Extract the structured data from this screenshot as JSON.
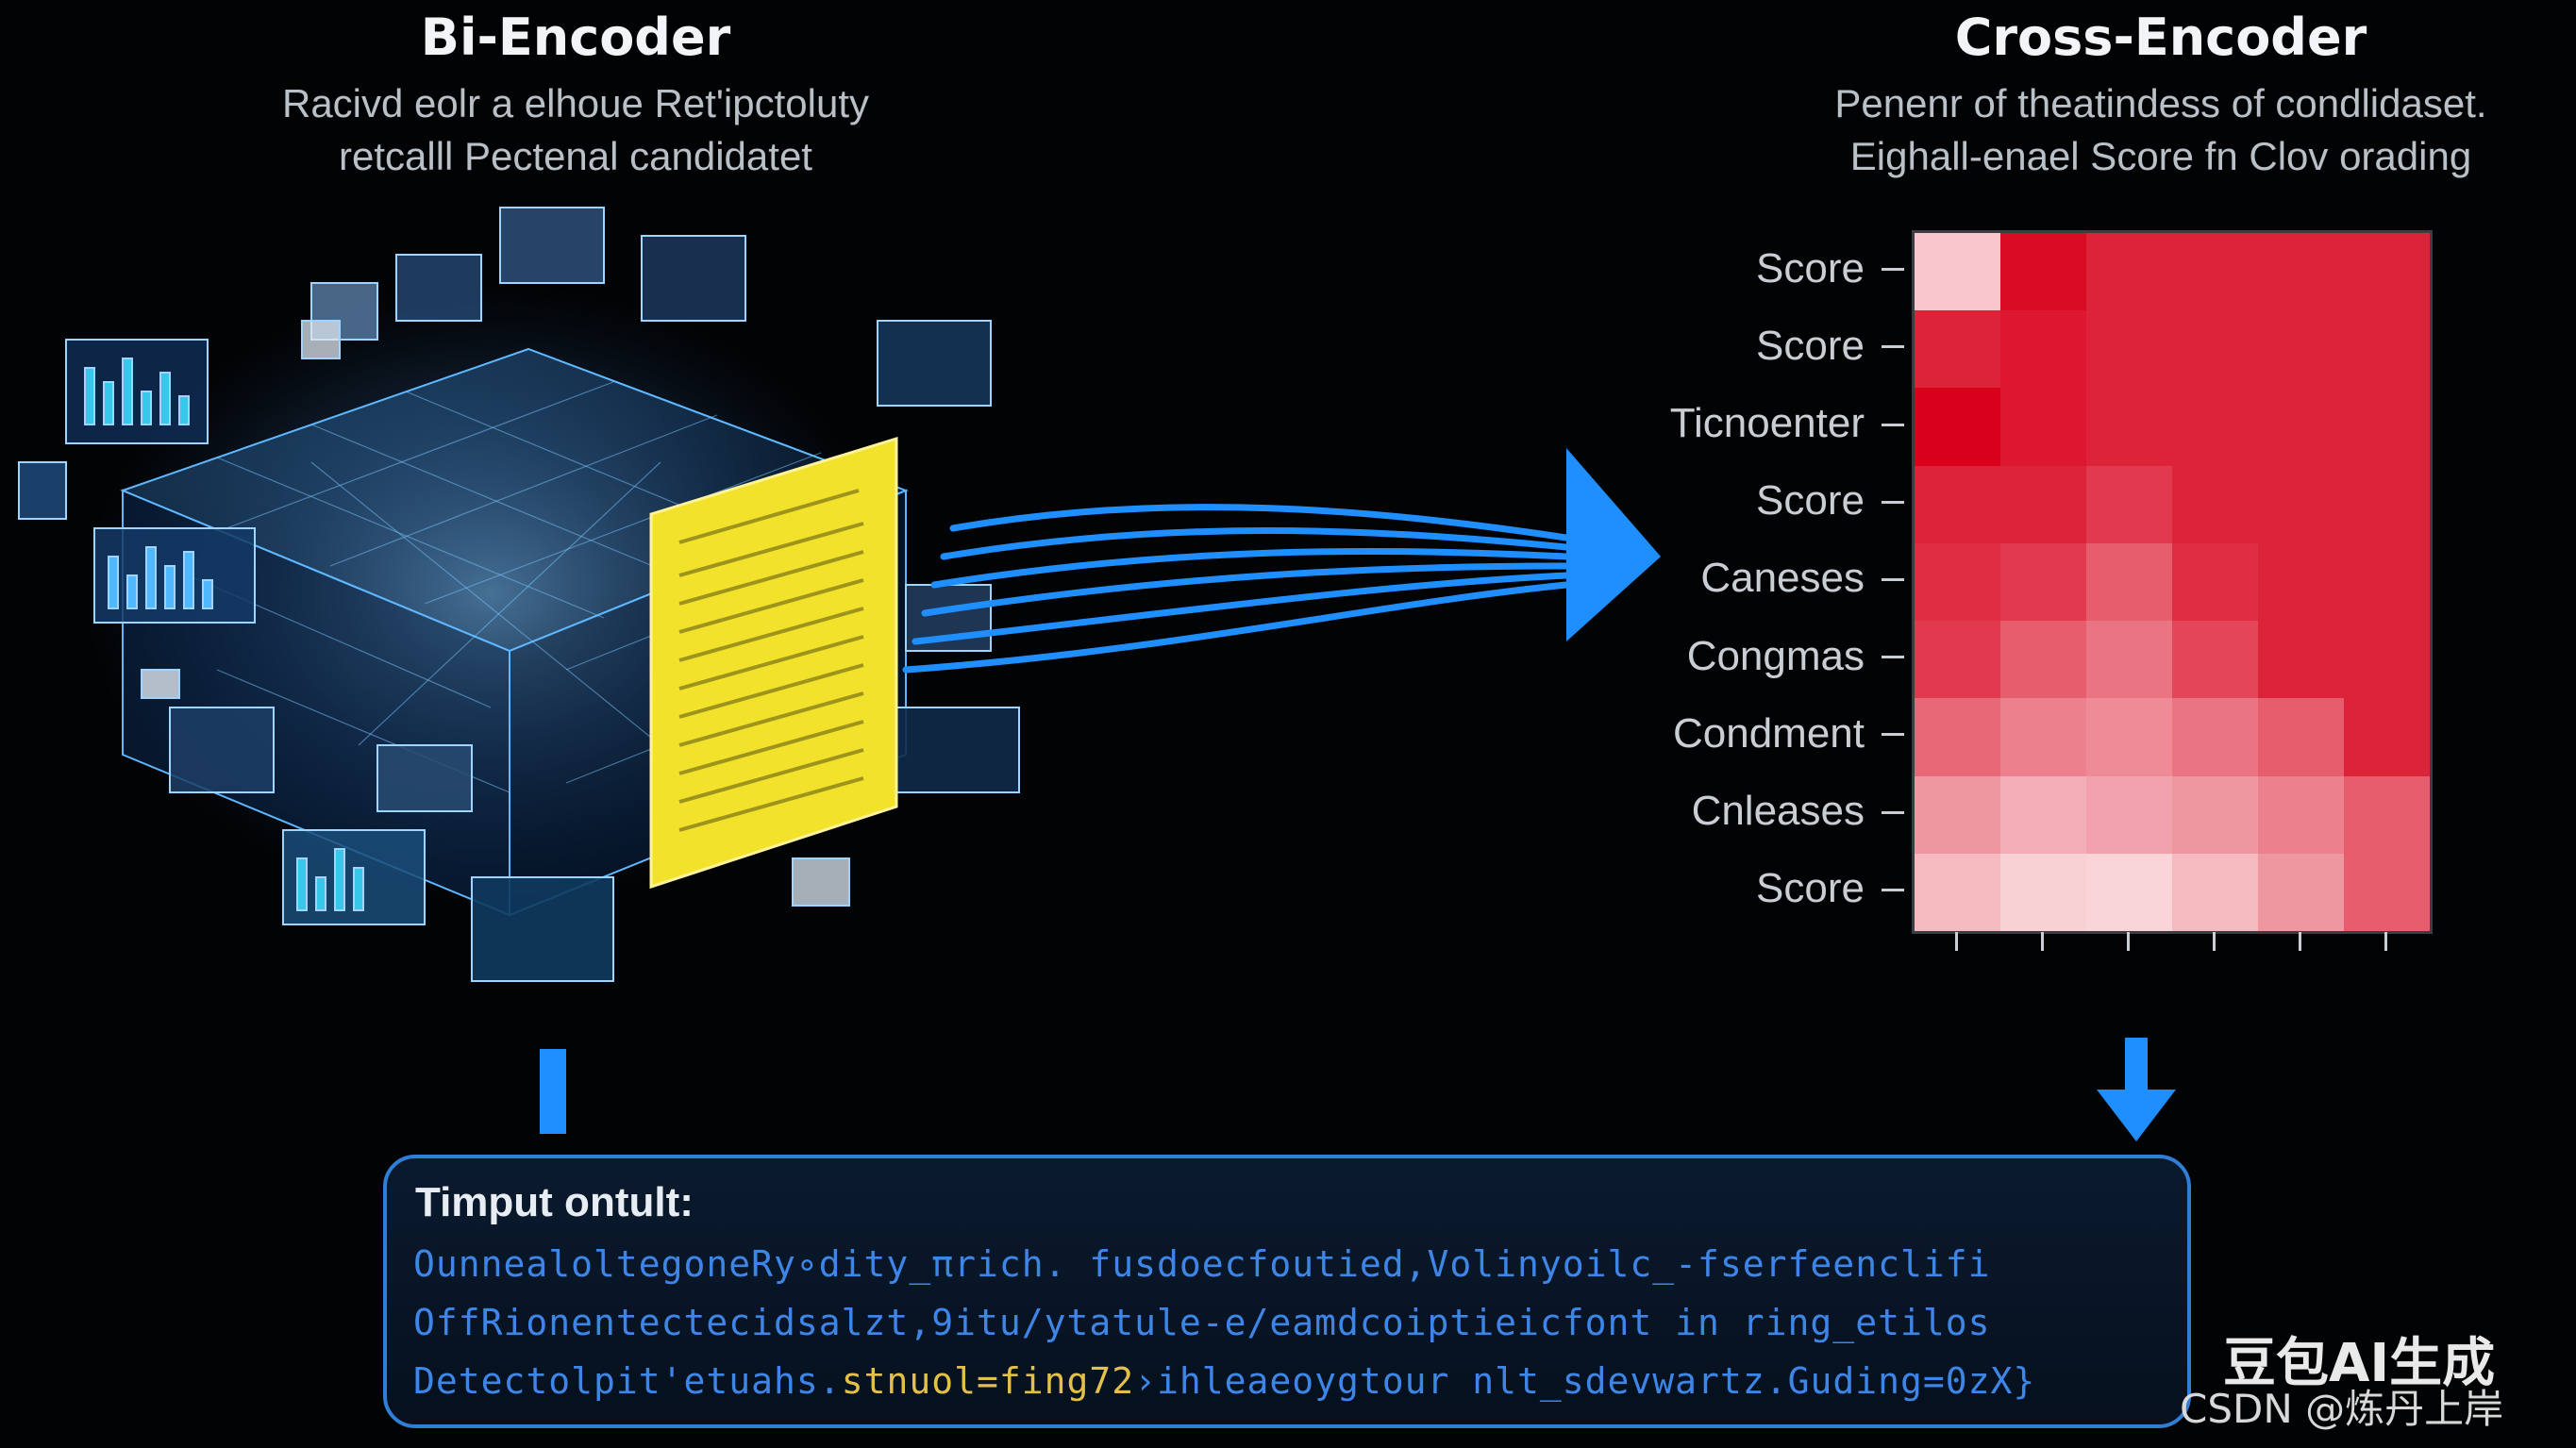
{
  "bi_encoder": {
    "title": "Bi-Encoder",
    "subtitle_line1": "Racivd eolr a elhoue Ret'ipctoluty",
    "subtitle_line2": "retcalll Pectenal candidatet"
  },
  "cross_encoder": {
    "title": "Cross-Encoder",
    "subtitle_line1": "Penenr of theatindess of condlidaset.",
    "subtitle_line2": "Eighall-enael Score fn Clov orading",
    "row_labels": [
      "Score",
      "Score",
      "Ticnoenter",
      "Score",
      "Caneses",
      "Congmas",
      "Condment",
      "Cnleases",
      "Score"
    ],
    "heatmap_values": [
      [
        0.15,
        0.95,
        0.85,
        0.85,
        0.85,
        0.85
      ],
      [
        0.85,
        0.9,
        0.85,
        0.85,
        0.85,
        0.85
      ],
      [
        1.0,
        0.9,
        0.85,
        0.85,
        0.85,
        0.85
      ],
      [
        0.85,
        0.85,
        0.75,
        0.85,
        0.85,
        0.85
      ],
      [
        0.8,
        0.75,
        0.6,
        0.8,
        0.85,
        0.85
      ],
      [
        0.75,
        0.6,
        0.5,
        0.7,
        0.85,
        0.85
      ],
      [
        0.55,
        0.45,
        0.4,
        0.5,
        0.6,
        0.85
      ],
      [
        0.35,
        0.25,
        0.3,
        0.35,
        0.45,
        0.6
      ],
      [
        0.2,
        0.1,
        0.08,
        0.2,
        0.35,
        0.6
      ]
    ],
    "heat_color": "#d8001a"
  },
  "output": {
    "heading": "Timput ontult:",
    "line1": "OunnealoltegoneRy∘dity_πrich. fusdoecfoutied,Volinyoilc_-fserfeenclifi",
    "line2": "OffRionentectecidsalzt,9itu/ytatule-e/eamdcoiptieicfont in ring_etilos",
    "line3_prefix": "Detectolpit'etuahs.",
    "line3_highlight": "stnuol=fing72",
    "line3_suffix": "›ihleaeoygtour nlt_sdevwartz.Guding=0zX}"
  },
  "watermark": {
    "text": "豆包AI生成",
    "credit": "CSDN @炼丹上岸"
  },
  "colors": {
    "accent_blue": "#1f8fff",
    "document_yellow": "#f2e22c",
    "panel_border": "#2f7fd6"
  }
}
